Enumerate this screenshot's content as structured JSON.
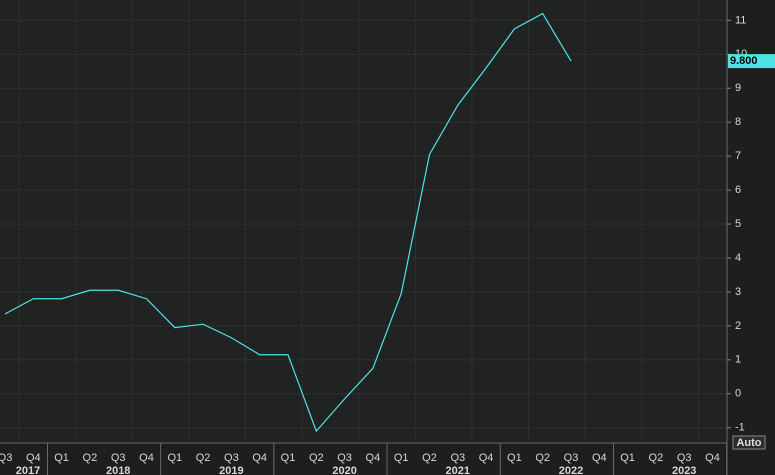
{
  "chart_data": {
    "type": "line",
    "categories": [
      "Q3",
      "Q4",
      "Q1",
      "Q2",
      "Q3",
      "Q4",
      "Q1",
      "Q2",
      "Q3",
      "Q4",
      "Q1",
      "Q2",
      "Q3",
      "Q4",
      "Q1",
      "Q2",
      "Q3",
      "Q4",
      "Q1",
      "Q2",
      "Q3",
      "Q4",
      "Q1",
      "Q2",
      "Q3",
      "Q4"
    ],
    "years": [
      "2017",
      "2018",
      "2019",
      "2020",
      "2021",
      "2022",
      "2023"
    ],
    "series": [
      {
        "color": "#4fe3e6",
        "values": [
          2.35,
          2.8,
          2.8,
          3.05,
          3.05,
          2.8,
          1.95,
          2.05,
          1.65,
          1.15,
          1.15,
          -1.1,
          -0.15,
          0.75,
          2.95,
          7.05,
          8.5,
          9.6,
          10.75,
          11.2,
          9.8,
          null,
          null,
          null,
          null,
          null
        ],
        "value_labels": [
          null,
          null,
          null,
          null,
          null,
          null,
          null,
          null,
          null,
          null,
          null,
          null,
          null,
          null,
          null,
          null,
          null,
          null,
          null,
          null,
          "9.800",
          null,
          null,
          null,
          null,
          null
        ]
      }
    ],
    "ylim": [
      -1.45,
      11.6
    ],
    "yticks": [
      -1,
      0,
      1,
      2,
      3,
      4,
      5,
      6,
      7,
      8,
      9,
      10,
      11
    ],
    "grid": true
  },
  "controls": {
    "auto": "Auto"
  }
}
